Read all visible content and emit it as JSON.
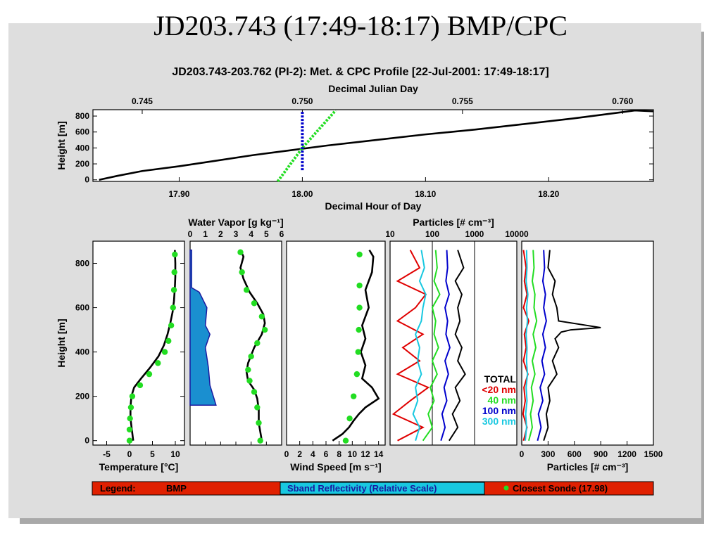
{
  "slide_title": "JD203.743 (17:49-18:17) BMP/CPC",
  "figure_title": "JD203.743-203.762 (PI-2): Met. & CPC Profile [22-Jul-2001: 17:49-18:17]",
  "colors": {
    "bmp": "#000000",
    "sonde": "#22dd22",
    "sband": "#1a8fd0",
    "sband_edge": "#1a1aa0",
    "lt20": "#e00000",
    "n40": "#22dd22",
    "n100": "#0000cc",
    "n300": "#18c8e0",
    "legend_bg": "#e02000"
  },
  "chart_data": [
    {
      "type": "line",
      "id": "time_height",
      "xlabel": "Decimal Hour of Day",
      "top_label": "Decimal Julian Day",
      "ylabel": "Height [m]",
      "xlim": [
        17.83,
        18.285
      ],
      "ylim": [
        -20,
        880
      ],
      "x_ticks": [
        "17.90",
        "18.00",
        "18.10",
        "18.20"
      ],
      "top_ticks": [
        "0.745",
        "0.750",
        "0.755",
        "0.760"
      ],
      "y_ticks": [
        "0",
        "200",
        "400",
        "600",
        "800"
      ],
      "series": [
        {
          "name": "BMP",
          "x": [
            17.835,
            17.85,
            17.87,
            17.9,
            17.93,
            17.96,
            17.99,
            18.02,
            18.06,
            18.1,
            18.14,
            18.18,
            18.22,
            18.25,
            18.27,
            18.285
          ],
          "y": [
            0,
            50,
            110,
            170,
            240,
            310,
            370,
            430,
            500,
            570,
            630,
            700,
            770,
            830,
            870,
            860
          ]
        },
        {
          "name": "Closest Sonde (17.98)",
          "x": [
            17.98,
            18.0,
            18.027
          ],
          "y": [
            -20,
            400,
            870
          ]
        },
        {
          "name": "Sband",
          "x": [
            18.0,
            18.0
          ],
          "y": [
            120,
            860
          ]
        }
      ]
    },
    {
      "type": "line",
      "id": "temperature",
      "xlabel": "Temperature [°C]",
      "ylabel": "Height [m]",
      "xlim": [
        -8,
        12
      ],
      "ylim": [
        -20,
        900
      ],
      "x_ticks": [
        "-5",
        "0",
        "5",
        "10"
      ],
      "y_ticks": [
        "0",
        "200",
        "400",
        "600",
        "800"
      ],
      "series": [
        {
          "name": "BMP",
          "x": [
            0.8,
            0.5,
            0.2,
            0.2,
            0.4,
            1.0,
            2.5,
            4.5,
            6.3,
            7.5,
            8.3,
            8.9,
            9.4,
            9.7,
            9.9,
            10.0,
            10.0,
            9.9
          ],
          "y": [
            0,
            50,
            100,
            150,
            200,
            240,
            280,
            330,
            380,
            430,
            480,
            530,
            580,
            630,
            690,
            740,
            800,
            860
          ]
        },
        {
          "name": "Closest Sonde (17.98)",
          "x": [
            0,
            0,
            0.1,
            0.3,
            0.6,
            2.3,
            4.3,
            6.2,
            7.7,
            8.5,
            9.1,
            9.5,
            9.7,
            9.8,
            9.9
          ],
          "y": [
            0,
            50,
            100,
            150,
            200,
            250,
            300,
            350,
            400,
            450,
            520,
            600,
            680,
            760,
            840
          ]
        }
      ]
    },
    {
      "type": "line",
      "id": "water_vapor",
      "top_label": "Water Vapor [g kg⁻¹]",
      "xlim": [
        0,
        6
      ],
      "ylim": [
        -20,
        900
      ],
      "x_ticks": [
        "0",
        "1",
        "2",
        "3",
        "4",
        "5",
        "6"
      ],
      "series": [
        {
          "name": "BMP",
          "x": [
            4.7,
            4.5,
            4.5,
            4.4,
            4.2,
            3.8,
            3.7,
            3.8,
            4.2,
            4.7,
            4.9,
            4.8,
            4.4,
            3.9,
            3.5,
            3.3,
            3.5,
            3.3
          ],
          "y": [
            0,
            80,
            140,
            190,
            230,
            270,
            310,
            350,
            420,
            480,
            530,
            570,
            620,
            670,
            730,
            780,
            830,
            860
          ]
        },
        {
          "name": "Closest Sonde (17.98)",
          "x": [
            4.6,
            4.5,
            4.4,
            4.2,
            3.9,
            3.8,
            4.0,
            4.4,
            4.9,
            4.7,
            4.2,
            3.7,
            3.4,
            3.3
          ],
          "y": [
            0,
            80,
            150,
            220,
            270,
            320,
            380,
            440,
            500,
            560,
            620,
            680,
            760,
            850
          ]
        },
        {
          "name": "Sband Reflectivity (Relative Scale)",
          "x": [
            0.1,
            1.7,
            1.3,
            1.2,
            1.0,
            1.3,
            1.0,
            1.1,
            0.6,
            0.1,
            0.1
          ],
          "y": [
            160,
            160,
            250,
            330,
            420,
            480,
            520,
            600,
            670,
            690,
            860
          ]
        }
      ]
    },
    {
      "type": "line",
      "id": "wind_speed",
      "xlabel": "Wind Speed [m s⁻¹]",
      "xlim": [
        0,
        15
      ],
      "ylim": [
        -20,
        900
      ],
      "x_ticks": [
        "0",
        "2",
        "4",
        "6",
        "8",
        "10",
        "12",
        "14"
      ],
      "series": [
        {
          "name": "BMP",
          "x": [
            7,
            8.5,
            9.5,
            10.2,
            11,
            12,
            14,
            13,
            11.5,
            12,
            11.3,
            12,
            11.5,
            12.5,
            12,
            13,
            13.2,
            12.6
          ],
          "y": [
            0,
            30,
            60,
            90,
            120,
            150,
            190,
            240,
            280,
            340,
            400,
            460,
            520,
            600,
            680,
            760,
            830,
            860
          ]
        },
        {
          "name": "Closest Sonde (17.98)",
          "x": [
            9,
            9.6,
            10.2,
            10.7,
            10.9,
            11.0,
            11.1,
            11.1,
            11.1
          ],
          "y": [
            0,
            100,
            200,
            300,
            400,
            500,
            600,
            700,
            840
          ]
        }
      ]
    },
    {
      "type": "line",
      "id": "particles_log",
      "top_label": "Particles [# cm⁻³]",
      "xscale": "log",
      "xlim": [
        10,
        10000
      ],
      "ylim": [
        -20,
        900
      ],
      "x_ticks": [
        "10",
        "100",
        "1000",
        "10000"
      ],
      "series": [
        {
          "name": "TOTAL",
          "x": [
            250,
            400,
            300,
            450,
            350,
            600,
            400,
            500,
            350,
            450,
            400,
            500,
            350,
            550,
            400
          ],
          "y": [
            0,
            60,
            120,
            180,
            240,
            300,
            360,
            420,
            480,
            540,
            600,
            660,
            720,
            780,
            860
          ]
        },
        {
          "name": "<20 nm",
          "x": [
            15,
            60,
            12,
            30,
            80,
            15,
            50,
            20,
            60,
            15,
            40,
            70,
            15,
            50,
            30
          ],
          "y": [
            0,
            60,
            120,
            180,
            240,
            300,
            360,
            420,
            480,
            540,
            600,
            660,
            720,
            780,
            860
          ]
        },
        {
          "name": "40 nm",
          "x": [
            60,
            100,
            80,
            110,
            90,
            130,
            100,
            140,
            110,
            120,
            100,
            150,
            110,
            130,
            120
          ],
          "y": [
            0,
            60,
            120,
            180,
            240,
            300,
            360,
            420,
            480,
            540,
            600,
            660,
            720,
            780,
            860
          ]
        },
        {
          "name": "100 nm",
          "x": [
            160,
            200,
            170,
            220,
            190,
            240,
            200,
            260,
            210,
            230,
            200,
            250,
            210,
            230,
            220
          ],
          "y": [
            0,
            60,
            120,
            180,
            240,
            300,
            360,
            420,
            480,
            540,
            600,
            660,
            720,
            780,
            860
          ]
        },
        {
          "name": "300 nm",
          "x": [
            40,
            50,
            35,
            45,
            40,
            55,
            45,
            50,
            40,
            55,
            60,
            70,
            50,
            65,
            55
          ],
          "y": [
            0,
            60,
            120,
            180,
            240,
            300,
            360,
            420,
            480,
            540,
            600,
            660,
            720,
            780,
            860
          ]
        }
      ]
    },
    {
      "type": "line",
      "id": "particles_linear",
      "xlabel": "Particles [# cm⁻³]",
      "xlim": [
        0,
        1500
      ],
      "ylim": [
        -20,
        900
      ],
      "x_ticks": [
        "0",
        "300",
        "600",
        "900",
        "1200",
        "1500"
      ],
      "series": [
        {
          "name": "TOTAL",
          "x": [
            250,
            300,
            280,
            320,
            300,
            400,
            350,
            420,
            380,
            450,
            560,
            900,
            420,
            400,
            350,
            380,
            300,
            320
          ],
          "y": [
            0,
            60,
            120,
            180,
            240,
            300,
            360,
            420,
            460,
            490,
            500,
            510,
            540,
            600,
            660,
            720,
            780,
            860
          ]
        },
        {
          "name": "<20 nm",
          "x": [
            20,
            60,
            15,
            40,
            25,
            70,
            20,
            50,
            30,
            80,
            20,
            60,
            30,
            50,
            20
          ],
          "y": [
            0,
            60,
            120,
            180,
            240,
            300,
            360,
            420,
            480,
            540,
            600,
            660,
            720,
            780,
            860
          ]
        },
        {
          "name": "40 nm",
          "x": [
            80,
            120,
            100,
            130,
            110,
            150,
            120,
            160,
            130,
            170,
            140,
            150,
            120,
            140,
            130
          ],
          "y": [
            0,
            60,
            120,
            180,
            240,
            300,
            360,
            420,
            480,
            540,
            600,
            660,
            720,
            780,
            860
          ]
        },
        {
          "name": "100 nm",
          "x": [
            180,
            220,
            190,
            240,
            210,
            260,
            230,
            270,
            240,
            280,
            250,
            270,
            240,
            260,
            250
          ],
          "y": [
            0,
            60,
            120,
            180,
            240,
            300,
            360,
            420,
            480,
            540,
            600,
            660,
            720,
            780,
            860
          ]
        },
        {
          "name": "300 nm",
          "x": [
            40,
            55,
            45,
            60,
            50,
            65,
            55,
            60,
            50,
            65,
            55,
            70,
            50,
            60,
            55
          ],
          "y": [
            0,
            60,
            120,
            180,
            240,
            300,
            360,
            420,
            480,
            540,
            600,
            660,
            720,
            780,
            860
          ]
        }
      ]
    }
  ],
  "particle_legend": [
    {
      "label": "TOTAL",
      "color": "#000000"
    },
    {
      "label": "<20 nm",
      "color": "#e00000"
    },
    {
      "label": "40 nm",
      "color": "#22dd22"
    },
    {
      "label": "100 nm",
      "color": "#0000cc"
    },
    {
      "label": "300 nm",
      "color": "#18c8e0"
    }
  ],
  "legend_bar": {
    "label": "Legend:",
    "bmp": "BMP",
    "sband": "Sband Reflectivity (Relative Scale)",
    "sonde": "Closest Sonde (17.98)"
  }
}
